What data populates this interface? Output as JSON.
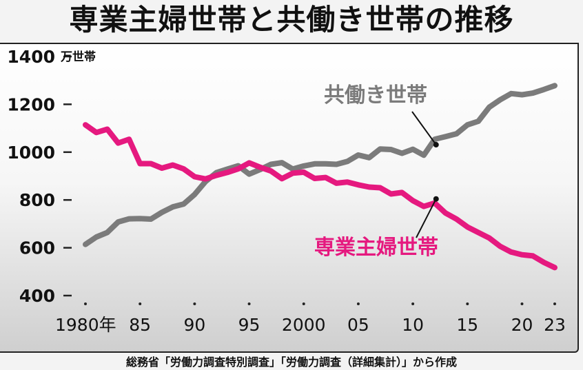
{
  "title": "専業主婦世帯と共働き世帯の推移",
  "source": "総務省「労働力調査特別調査」「労働力調査（詳細集計）」から作成",
  "colors": {
    "working": "#7b7b7b",
    "housewife": "#e5197f"
  },
  "chart_data": {
    "type": "line",
    "title": "専業主婦世帯と共働き世帯の推移",
    "ylabel": "万世帯",
    "ylim": [
      400,
      1400
    ],
    "yticks": [
      "400",
      "600",
      "800",
      "1000",
      "1200",
      "1400"
    ],
    "xlim": [
      1980,
      2023
    ],
    "xtick_labels": [
      {
        "x": 1980,
        "label": "1980年"
      },
      {
        "x": 1985,
        "label": "85"
      },
      {
        "x": 1990,
        "label": "90"
      },
      {
        "x": 1995,
        "label": "95"
      },
      {
        "x": 2000,
        "label": "2000"
      },
      {
        "x": 2005,
        "label": "05"
      },
      {
        "x": 2010,
        "label": "10"
      },
      {
        "x": 2015,
        "label": "15"
      },
      {
        "x": 2020,
        "label": "20"
      },
      {
        "x": 2023,
        "label": "23"
      }
    ],
    "grid": false,
    "legend": "inline labels",
    "series": [
      {
        "name": "共働き世帯",
        "color": "#7b7b7b",
        "label_anchor_x": 2012,
        "x": [
          1980,
          1981,
          1982,
          1983,
          1984,
          1985,
          1986,
          1987,
          1988,
          1989,
          1990,
          1991,
          1992,
          1993,
          1994,
          1995,
          1996,
          1997,
          1998,
          1999,
          2000,
          2001,
          2002,
          2003,
          2004,
          2005,
          2006,
          2007,
          2008,
          2009,
          2010,
          2011,
          2012,
          2013,
          2014,
          2015,
          2016,
          2017,
          2018,
          2019,
          2020,
          2021,
          2022,
          2023
        ],
        "values": [
          614,
          645,
          664,
          708,
          721,
          722,
          720,
          748,
          771,
          783,
          823,
          877,
          914,
          929,
          943,
          908,
          927,
          949,
          956,
          929,
          942,
          951,
          951,
          949,
          961,
          988,
          977,
          1013,
          1011,
          995,
          1012,
          987,
          1054,
          1065,
          1077,
          1114,
          1129,
          1188,
          1219,
          1245,
          1240,
          1247,
          1262,
          1278
        ]
      },
      {
        "name": "専業主婦世帯",
        "color": "#e5197f",
        "label_anchor_x": 2012,
        "x": [
          1980,
          1981,
          1982,
          1983,
          1984,
          1985,
          1986,
          1987,
          1988,
          1989,
          1990,
          1991,
          1992,
          1993,
          1994,
          1995,
          1996,
          1997,
          1998,
          1999,
          2000,
          2001,
          2002,
          2003,
          2004,
          2005,
          2006,
          2007,
          2008,
          2009,
          2010,
          2011,
          2012,
          2013,
          2014,
          2015,
          2016,
          2017,
          2018,
          2019,
          2020,
          2021,
          2022,
          2023
        ],
        "values": [
          1114,
          1082,
          1096,
          1038,
          1054,
          952,
          952,
          933,
          946,
          930,
          897,
          888,
          903,
          915,
          930,
          955,
          937,
          921,
          889,
          912,
          916,
          890,
          894,
          870,
          875,
          863,
          854,
          851,
          825,
          831,
          797,
          773,
          787,
          745,
          720,
          687,
          664,
          641,
          606,
          582,
          571,
          566,
          539,
          517
        ]
      }
    ]
  }
}
